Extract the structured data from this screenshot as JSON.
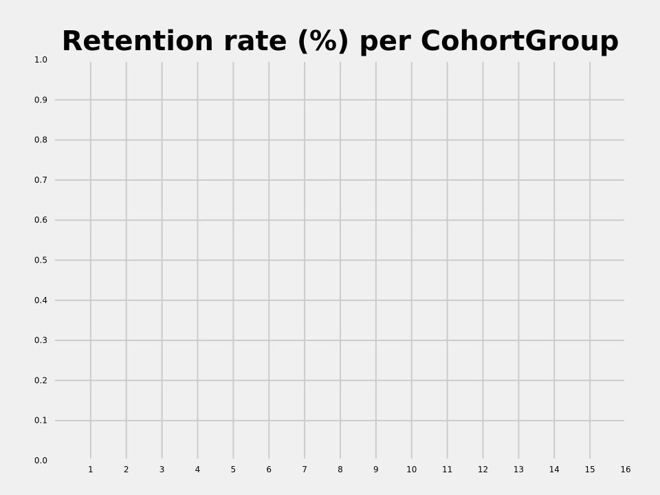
{
  "chart_data": {
    "type": "line",
    "title": "Retention rate (%) per CohortGroup",
    "xlabel": "",
    "ylabel": "",
    "x_ticks": [
      "1",
      "2",
      "3",
      "4",
      "5",
      "6",
      "7",
      "8",
      "9",
      "10",
      "11",
      "12",
      "13",
      "14",
      "15",
      "16"
    ],
    "y_ticks": [
      "0.0",
      "0.1",
      "0.2",
      "0.3",
      "0.4",
      "0.5",
      "0.6",
      "0.7",
      "0.8",
      "0.9",
      "1.0"
    ],
    "xlim": [
      0,
      16
    ],
    "ylim": [
      0,
      1
    ],
    "grid": true,
    "series": [],
    "colors": {
      "background": "#f0f0f0",
      "grid": "#cbcbcb",
      "text": "#000000"
    }
  }
}
